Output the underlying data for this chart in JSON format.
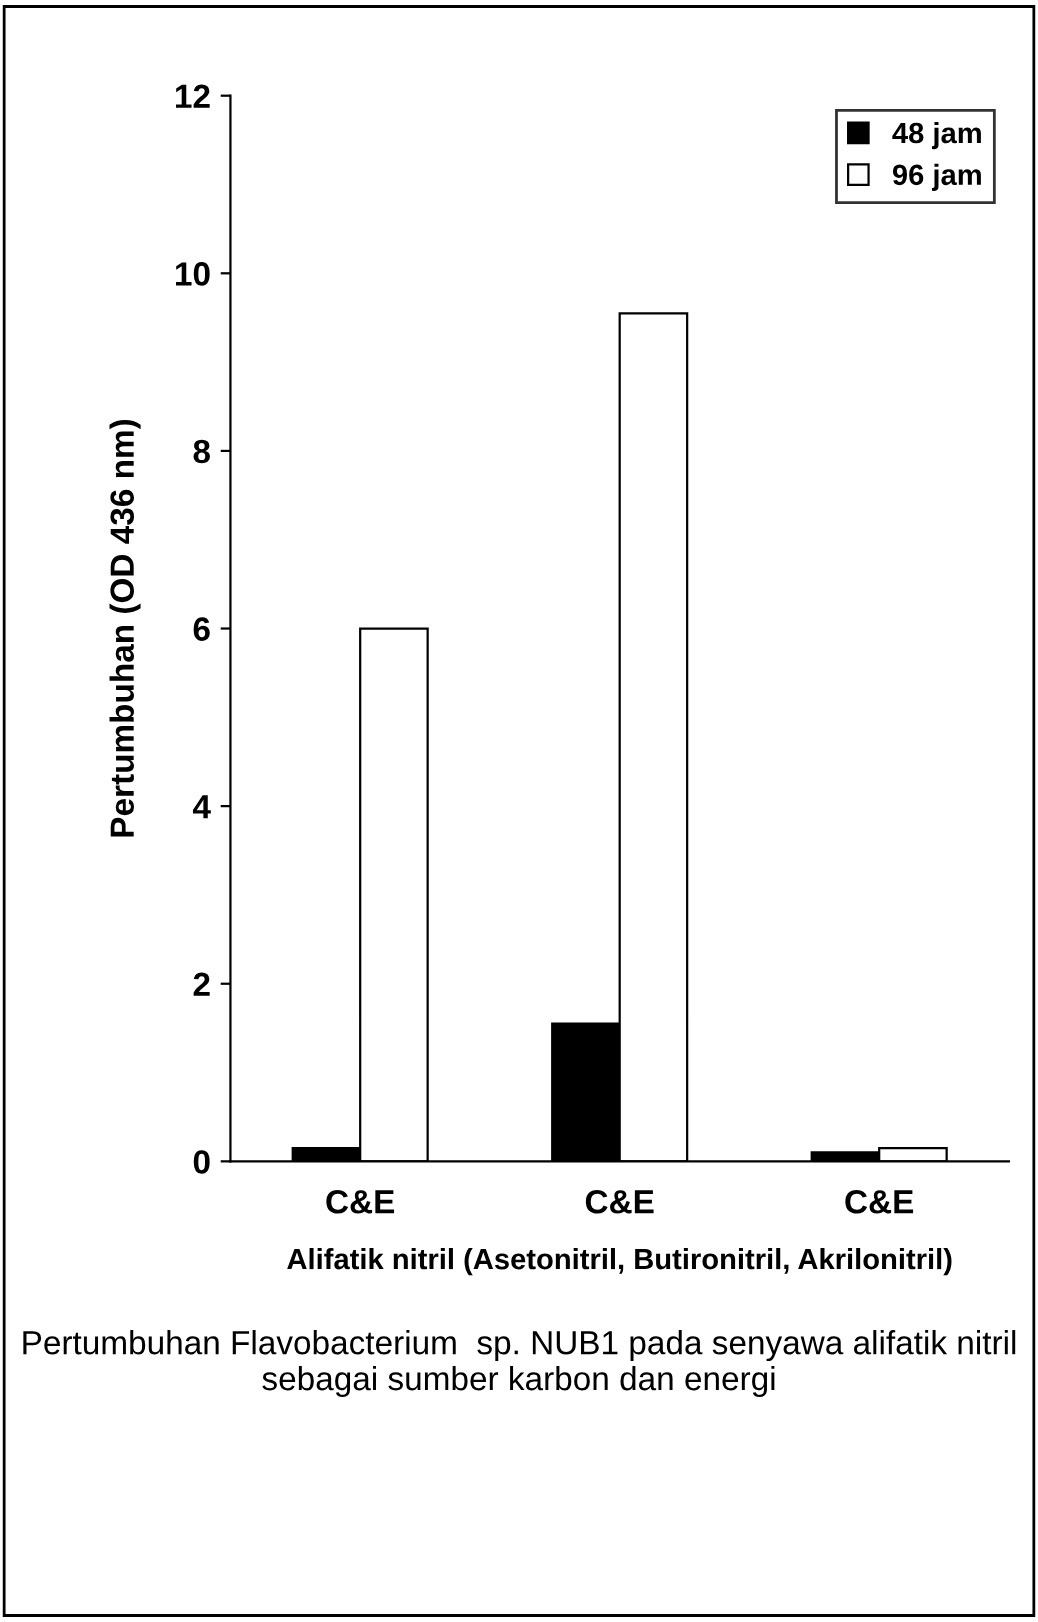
{
  "chart_data": {
    "type": "bar",
    "ylabel": "Pertumbuhan (OD 436 nm)",
    "xlabel": "Alifatik nitril (Asetonitril, Butironitril, Akrilonitril)",
    "categories": [
      "C&E",
      "C&E",
      "C&E"
    ],
    "series": [
      {
        "name": "48 jam",
        "color": "#000000",
        "values": [
          0.15,
          1.55,
          0.1
        ]
      },
      {
        "name": "96 jam",
        "color": "#ffffff",
        "values": [
          6.0,
          9.55,
          0.15
        ]
      }
    ],
    "ylim": [
      0,
      12
    ],
    "yticks": [
      0,
      2,
      4,
      6,
      8,
      10,
      12
    ],
    "grid": false,
    "legend": "top right",
    "annotations": [
      "Pertumbuhan Flavobacterium  sp. NUB1 pada senyawa alifatik nitril sebagai sumber karbon dan energi"
    ]
  }
}
